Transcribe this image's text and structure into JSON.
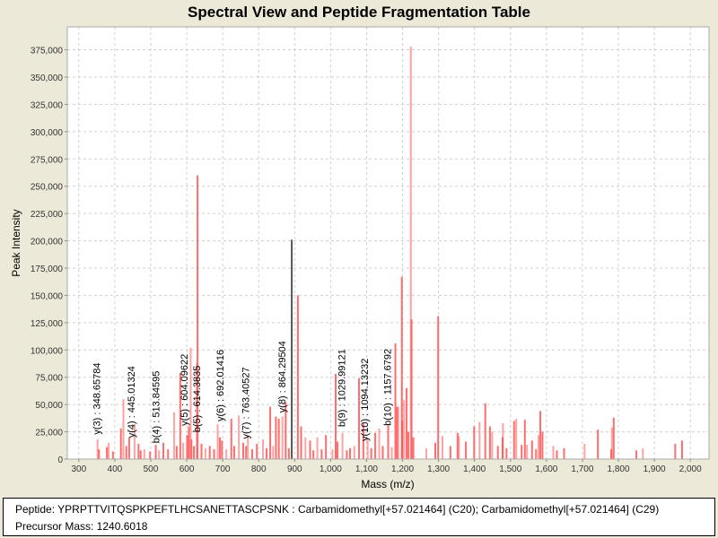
{
  "chart_data": {
    "type": "bar",
    "title": "Spectral View and Peptide Fragmentation Table",
    "xlabel": "Mass (m/z)",
    "ylabel": "Peak Intensity",
    "xlim": [
      268,
      2052
    ],
    "ylim": [
      0,
      396000
    ],
    "x_ticks": [
      300,
      400,
      500,
      600,
      700,
      800,
      900,
      1000,
      1100,
      1200,
      1300,
      1400,
      1500,
      1600,
      1700,
      1800,
      1900,
      2000
    ],
    "x_tick_labels": [
      "300",
      "400",
      "500",
      "600",
      "700",
      "800",
      "900",
      "1,000",
      "1,100",
      "1,200",
      "1,300",
      "1,400",
      "1,500",
      "1,600",
      "1,700",
      "1,800",
      "1,900",
      "2,000"
    ],
    "y_ticks": [
      0,
      25000,
      50000,
      75000,
      100000,
      125000,
      150000,
      175000,
      200000,
      225000,
      250000,
      275000,
      300000,
      325000,
      350000,
      375000
    ],
    "y_tick_labels": [
      "0",
      "25,000",
      "50,000",
      "75,000",
      "100,000",
      "125,000",
      "150,000",
      "175,000",
      "200,000",
      "225,000",
      "250,000",
      "275,000",
      "300,000",
      "325,000",
      "350,000",
      "375,000"
    ],
    "grid": true,
    "peak_color": "#ff5555",
    "highlight_color": "#555555",
    "peaks": [
      [
        352,
        18000
      ],
      [
        356,
        9000
      ],
      [
        378,
        11000
      ],
      [
        383,
        15000
      ],
      [
        395,
        7000
      ],
      [
        417,
        28000
      ],
      [
        424,
        55000
      ],
      [
        432,
        12000
      ],
      [
        440,
        20000
      ],
      [
        455,
        32000
      ],
      [
        466,
        14000
      ],
      [
        472,
        8000
      ],
      [
        482,
        9000
      ],
      [
        498,
        7000
      ],
      [
        514,
        13000
      ],
      [
        523,
        8000
      ],
      [
        535,
        15000
      ],
      [
        548,
        9000
      ],
      [
        565,
        43000
      ],
      [
        572,
        12000
      ],
      [
        582,
        79000
      ],
      [
        590,
        15000
      ],
      [
        601,
        22000
      ],
      [
        606,
        30000
      ],
      [
        611,
        102000
      ],
      [
        613,
        18000
      ],
      [
        620,
        12000
      ],
      [
        628,
        88000
      ],
      [
        630,
        260000
      ],
      [
        641,
        14000
      ],
      [
        652,
        10000
      ],
      [
        664,
        12000
      ],
      [
        676,
        9000
      ],
      [
        686,
        32000
      ],
      [
        692,
        20000
      ],
      [
        698,
        17000
      ],
      [
        710,
        9000
      ],
      [
        724,
        37000
      ],
      [
        732,
        12000
      ],
      [
        745,
        40000
      ],
      [
        757,
        15000
      ],
      [
        765,
        12000
      ],
      [
        770,
        22000
      ],
      [
        782,
        9000
      ],
      [
        795,
        14000
      ],
      [
        812,
        18000
      ],
      [
        822,
        10000
      ],
      [
        832,
        48000
      ],
      [
        840,
        12000
      ],
      [
        848,
        39000
      ],
      [
        856,
        37000
      ],
      [
        866,
        39000
      ],
      [
        875,
        52000
      ],
      [
        884,
        10000
      ],
      [
        892,
        201000
      ],
      [
        909,
        150000
      ],
      [
        918,
        30000
      ],
      [
        930,
        20000
      ],
      [
        943,
        17000
      ],
      [
        952,
        8000
      ],
      [
        963,
        20000
      ],
      [
        975,
        9000
      ],
      [
        987,
        22000
      ],
      [
        1005,
        9000
      ],
      [
        1014,
        78000
      ],
      [
        1019,
        16000
      ],
      [
        1033,
        24000
      ],
      [
        1045,
        8000
      ],
      [
        1054,
        10000
      ],
      [
        1066,
        12000
      ],
      [
        1079,
        74000
      ],
      [
        1091,
        33000
      ],
      [
        1103,
        18000
      ],
      [
        1113,
        10000
      ],
      [
        1124,
        24000
      ],
      [
        1135,
        28000
      ],
      [
        1145,
        12000
      ],
      [
        1160,
        31000
      ],
      [
        1170,
        11000
      ],
      [
        1180,
        106000
      ],
      [
        1185,
        48000
      ],
      [
        1188,
        48000
      ],
      [
        1198,
        167000
      ],
      [
        1199,
        35000
      ],
      [
        1204,
        54000
      ],
      [
        1211,
        65000
      ],
      [
        1216,
        25000
      ],
      [
        1223,
        378000
      ],
      [
        1225,
        128000
      ],
      [
        1230,
        20000
      ],
      [
        1266,
        10000
      ],
      [
        1291,
        15000
      ],
      [
        1299,
        131000
      ],
      [
        1311,
        21000
      ],
      [
        1333,
        12000
      ],
      [
        1353,
        24000
      ],
      [
        1357,
        21000
      ],
      [
        1376,
        16000
      ],
      [
        1399,
        30000
      ],
      [
        1414,
        34000
      ],
      [
        1430,
        51000
      ],
      [
        1443,
        30000
      ],
      [
        1449,
        25000
      ],
      [
        1465,
        12000
      ],
      [
        1478,
        20000
      ],
      [
        1479,
        33000
      ],
      [
        1489,
        10000
      ],
      [
        1510,
        35000
      ],
      [
        1516,
        37000
      ],
      [
        1531,
        13000
      ],
      [
        1540,
        36000
      ],
      [
        1546,
        13000
      ],
      [
        1560,
        17000
      ],
      [
        1571,
        9000
      ],
      [
        1578,
        22000
      ],
      [
        1583,
        44000
      ],
      [
        1589,
        25000
      ],
      [
        1619,
        12000
      ],
      [
        1629,
        8000
      ],
      [
        1649,
        10000
      ],
      [
        1706,
        14000
      ],
      [
        1743,
        27000
      ],
      [
        1780,
        9000
      ],
      [
        1782,
        29000
      ],
      [
        1787,
        38000
      ],
      [
        1850,
        8000
      ],
      [
        1868,
        10000
      ],
      [
        1958,
        14000
      ],
      [
        1977,
        17000
      ]
    ],
    "highlight_peaks": [
      892
    ],
    "annotations": [
      {
        "label": "y(3) : 348.65784",
        "mz": 348.65784,
        "intensity": 20000
      },
      {
        "label": "y(4) : 445.01324",
        "mz": 445.01324,
        "intensity": 17000
      },
      {
        "label": "b(4) : 513.84595",
        "mz": 513.84595,
        "intensity": 12000
      },
      {
        "label": "y(5) : 604.09622",
        "mz": 604.09622,
        "intensity": 28000
      },
      {
        "label": "b(5) : 614.3835",
        "mz": 614.3835,
        "intensity": 22000
      },
      {
        "label": "y(6) : 692.01416",
        "mz": 692.01416,
        "intensity": 32000
      },
      {
        "label": "y(7) : 763.40527",
        "mz": 763.40527,
        "intensity": 16000
      },
      {
        "label": "y(8) : 864.29504",
        "mz": 864.29504,
        "intensity": 40000
      },
      {
        "label": "b(9) : 1029.99121",
        "mz": 1029.99121,
        "intensity": 27000
      },
      {
        "label": "y(10) : 1094.13232",
        "mz": 1094.13232,
        "intensity": 14000
      },
      {
        "label": "b(10) : 1157.6792",
        "mz": 1157.6792,
        "intensity": 28000
      }
    ]
  },
  "info": {
    "peptide": "Peptide: YPRPTTVITQSPKPEFTLHCSANETTASCPSNK : Carbamidomethyl[+57.021464] (C20); Carbamidomethyl[+57.021464] (C29)",
    "precursor": "Precursor Mass: 1240.6018"
  }
}
